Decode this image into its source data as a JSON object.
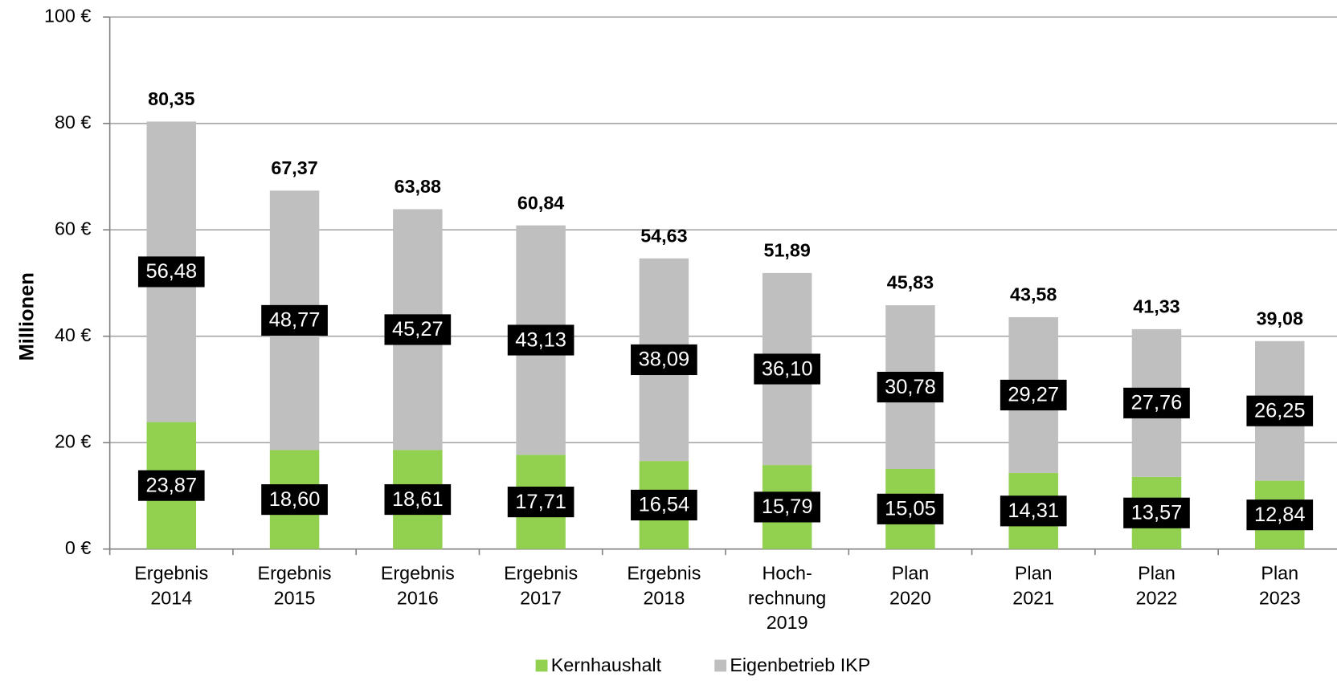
{
  "chart_data": {
    "type": "stacked_bar",
    "y_axis_label": "Millionen",
    "categories": [
      [
        "Ergebnis",
        "2014"
      ],
      [
        "Ergebnis",
        "2015"
      ],
      [
        "Ergebnis",
        "2016"
      ],
      [
        "Ergebnis",
        "2017"
      ],
      [
        "Ergebnis",
        "2018"
      ],
      [
        "Hoch-",
        "rechnung",
        "2019"
      ],
      [
        "Plan",
        "2020"
      ],
      [
        "Plan",
        "2021"
      ],
      [
        "Plan",
        "2022"
      ],
      [
        "Plan",
        "2023"
      ]
    ],
    "series": [
      {
        "name": "Kernhaushalt",
        "color": "#92d050",
        "values": [
          23.87,
          18.6,
          18.61,
          17.71,
          16.54,
          15.79,
          15.05,
          14.31,
          13.57,
          12.84
        ],
        "value_labels": [
          "23,87",
          "18,60",
          "18,61",
          "17,71",
          "16,54",
          "15,79",
          "15,05",
          "14,31",
          "13,57",
          "12,84"
        ]
      },
      {
        "name": "Eigenbetrieb IKP",
        "color": "#bfbfbf",
        "values": [
          56.48,
          48.77,
          45.27,
          43.13,
          38.09,
          36.1,
          30.78,
          29.27,
          27.76,
          26.25
        ],
        "value_labels": [
          "56,48",
          "48,77",
          "45,27",
          "43,13",
          "38,09",
          "36,10",
          "30,78",
          "29,27",
          "27,76",
          "26,25"
        ]
      }
    ],
    "totals": {
      "values": [
        80.35,
        67.37,
        63.88,
        60.84,
        54.63,
        51.89,
        45.83,
        43.58,
        41.33,
        39.08
      ],
      "value_labels": [
        "80,35",
        "67,37",
        "63,88",
        "60,84",
        "54,63",
        "51,89",
        "45,83",
        "43,58",
        "41,33",
        "39,08"
      ]
    },
    "ylim": [
      0,
      100
    ],
    "yticks": [
      {
        "value": 0,
        "label": "0 €"
      },
      {
        "value": 20,
        "label": "20 €"
      },
      {
        "value": 40,
        "label": "40 €"
      },
      {
        "value": 60,
        "label": "60 €"
      },
      {
        "value": 80,
        "label": "80 €"
      },
      {
        "value": 100,
        "label": "100 €"
      }
    ],
    "grid": true,
    "legend": "bottom"
  }
}
